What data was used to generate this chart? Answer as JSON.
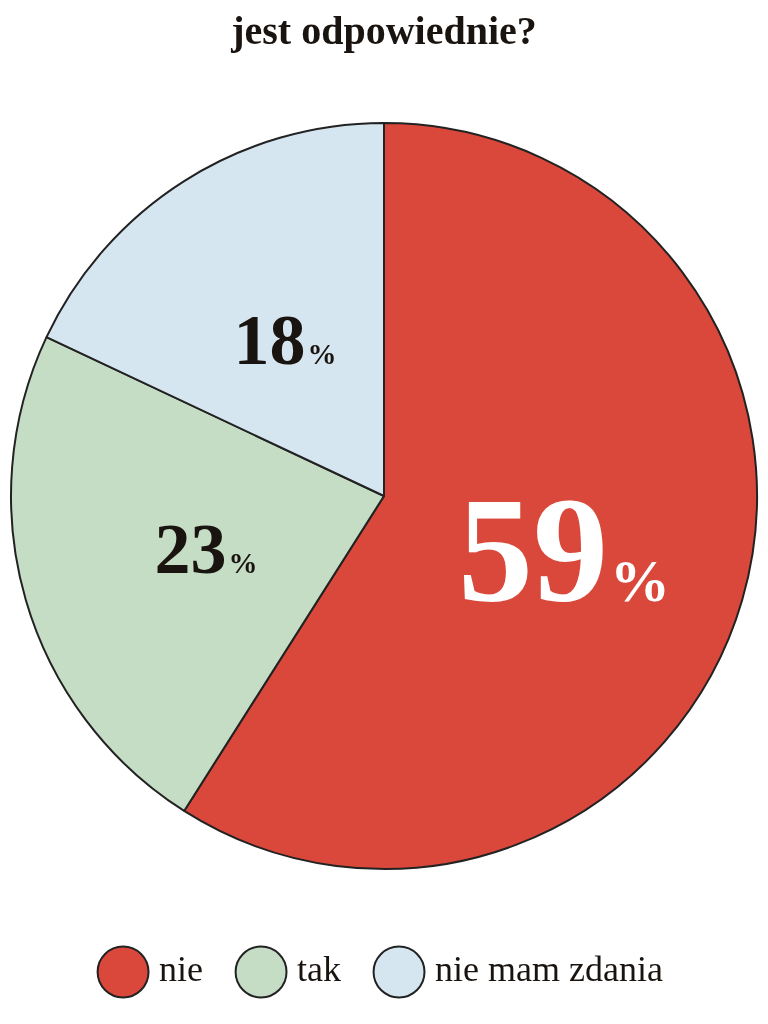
{
  "chart_data": {
    "type": "pie",
    "title": "jest odpowiednie?",
    "categories": [
      "nie",
      "tak",
      "nie mam zdania"
    ],
    "values": [
      59,
      23,
      18
    ],
    "colors": [
      "#d9483b",
      "#c5dcc5",
      "#d6e6f0"
    ],
    "value_labels": [
      "59%",
      "23%",
      "18%"
    ],
    "legend": "bottom"
  }
}
